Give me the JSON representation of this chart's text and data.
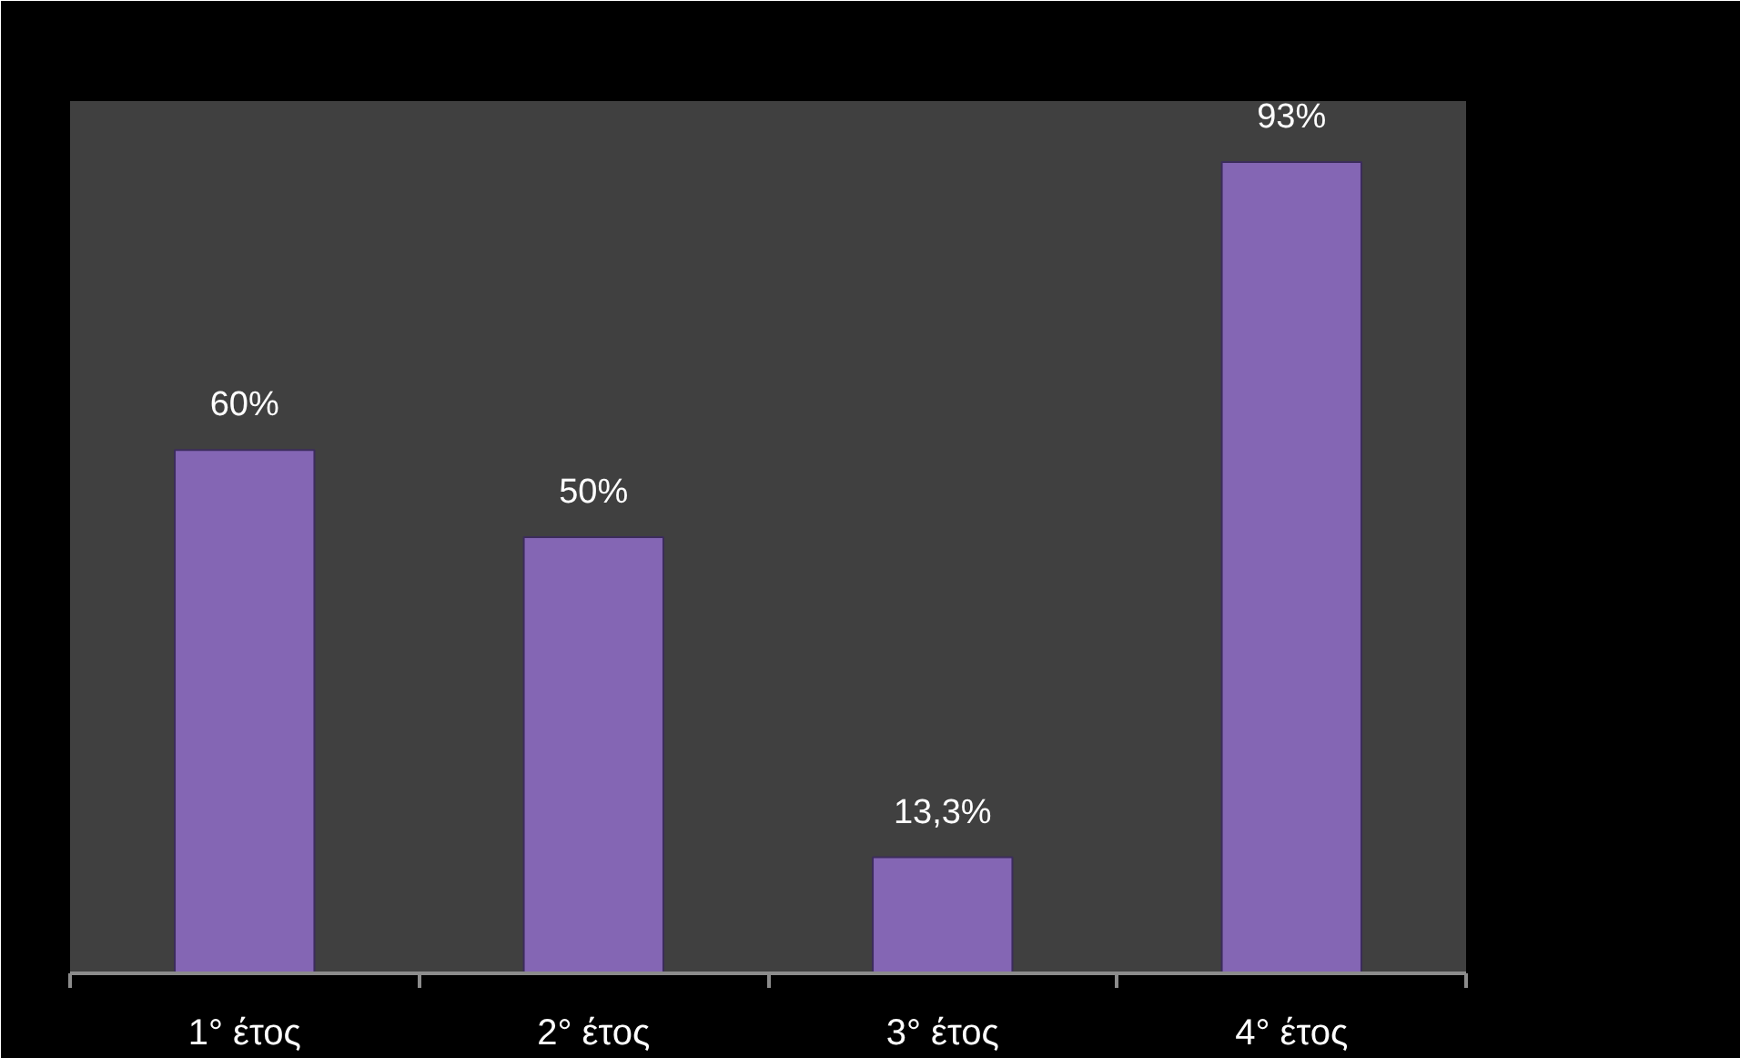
{
  "chart_data": {
    "type": "bar",
    "categories": [
      "1° έτος",
      "2° έτος",
      "3° έτος",
      "4° έτος"
    ],
    "values": [
      60,
      50,
      13.3,
      93
    ],
    "value_labels": [
      "60%",
      "50%",
      "13,3%",
      "93%"
    ],
    "color": "#8466b4",
    "ylim": [
      0,
      100
    ]
  }
}
